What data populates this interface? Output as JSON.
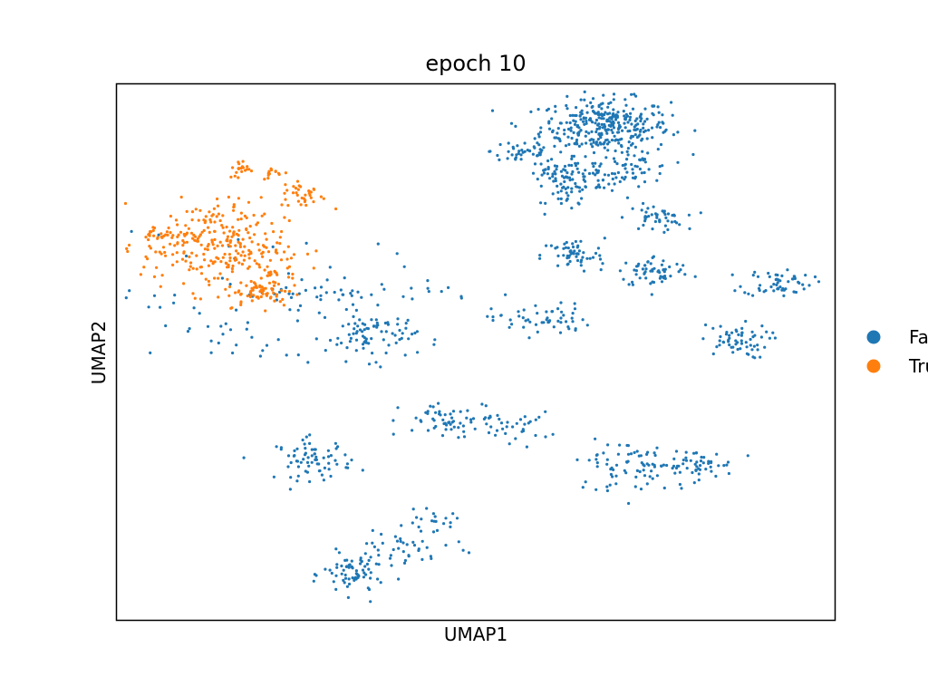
{
  "chart_data": {
    "type": "scatter",
    "title": "epoch 10",
    "xlabel": "UMAP1",
    "ylabel": "UMAP2",
    "xlim": [
      0,
      100
    ],
    "ylim": [
      0,
      100
    ],
    "xticks": [],
    "yticks": [],
    "grid": false,
    "legend": "right",
    "series": [
      {
        "name": "False",
        "color": "#1f77b4",
        "clusters": [
          {
            "cx": 68,
            "cy": 92,
            "sx": 4.5,
            "sy": 2.6,
            "n": 330
          },
          {
            "cx": 56.5,
            "cy": 87.5,
            "sx": 2.2,
            "sy": 1.4,
            "n": 40
          },
          {
            "cx": 61,
            "cy": 83,
            "sx": 2.0,
            "sy": 1.4,
            "n": 45
          },
          {
            "cx": 63,
            "cy": 79,
            "sx": 1.5,
            "sy": 1.3,
            "n": 30
          },
          {
            "cx": 67,
            "cy": 83,
            "sx": 2.0,
            "sy": 1.6,
            "n": 40
          },
          {
            "cx": 72.5,
            "cy": 84,
            "sx": 2.4,
            "sy": 1.3,
            "n": 40
          },
          {
            "cx": 75,
            "cy": 75,
            "sx": 2.0,
            "sy": 1.2,
            "n": 45
          },
          {
            "cx": 63.5,
            "cy": 68,
            "sx": 2.2,
            "sy": 1.6,
            "n": 55
          },
          {
            "cx": 75,
            "cy": 65,
            "sx": 2.6,
            "sy": 1.5,
            "n": 60
          },
          {
            "cx": 92,
            "cy": 63,
            "sx": 2.4,
            "sy": 1.3,
            "n": 55
          },
          {
            "cx": 86,
            "cy": 52,
            "sx": 2.4,
            "sy": 1.6,
            "n": 60
          },
          {
            "cx": 59,
            "cy": 56,
            "sx": 3.4,
            "sy": 1.5,
            "n": 55
          },
          {
            "cx": 47.5,
            "cy": 37,
            "sx": 4.0,
            "sy": 1.8,
            "n": 65
          },
          {
            "cx": 56,
            "cy": 36,
            "sx": 2.2,
            "sy": 1.4,
            "n": 25
          },
          {
            "cx": 68,
            "cy": 29,
            "sx": 2.0,
            "sy": 2.2,
            "n": 30
          },
          {
            "cx": 80,
            "cy": 29,
            "sx": 3.0,
            "sy": 1.4,
            "n": 60
          },
          {
            "cx": 74,
            "cy": 28,
            "sx": 2.0,
            "sy": 2.2,
            "n": 35
          },
          {
            "cx": 27.5,
            "cy": 30,
            "sx": 2.6,
            "sy": 1.9,
            "n": 70
          },
          {
            "cx": 35.5,
            "cy": 53,
            "sx": 3.2,
            "sy": 2.2,
            "n": 80
          },
          {
            "cx": 33,
            "cy": 61,
            "sx": 9.0,
            "sy": 0.9,
            "n": 40
          },
          {
            "cx": 33,
            "cy": 8.5,
            "sx": 2.1,
            "sy": 2.0,
            "n": 70
          },
          {
            "cx": 40,
            "cy": 13,
            "sx": 4.0,
            "sy": 2.0,
            "n": 40
          },
          {
            "cx": 44,
            "cy": 18.5,
            "sx": 1.8,
            "sy": 0.9,
            "n": 20
          },
          {
            "cx": 18,
            "cy": 60,
            "sx": 10.0,
            "sy": 7.0,
            "n": 70
          }
        ]
      },
      {
        "name": "True",
        "color": "#ff7f0e",
        "clusters": [
          {
            "cx": 13.5,
            "cy": 70,
            "sx": 5.0,
            "sy": 4.2,
            "n": 260
          },
          {
            "cx": 20,
            "cy": 61,
            "sx": 2.4,
            "sy": 1.3,
            "n": 60
          },
          {
            "cx": 26,
            "cy": 79.5,
            "sx": 1.6,
            "sy": 1.3,
            "n": 35
          },
          {
            "cx": 17.5,
            "cy": 84,
            "sx": 0.9,
            "sy": 0.9,
            "n": 20
          },
          {
            "cx": 22,
            "cy": 83.5,
            "sx": 0.9,
            "sy": 0.5,
            "n": 12
          },
          {
            "cx": 6.5,
            "cy": 72,
            "sx": 1.5,
            "sy": 1.0,
            "n": 25
          },
          {
            "cx": 22,
            "cy": 65,
            "sx": 1.6,
            "sy": 1.5,
            "n": 30
          }
        ]
      }
    ]
  },
  "colors": {
    "false": "#1f77b4",
    "true": "#ff7f0e"
  }
}
